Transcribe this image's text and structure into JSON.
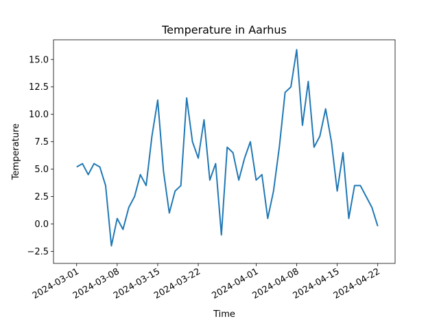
{
  "chart_data": {
    "type": "line",
    "title": "Temperature in Aarhus",
    "xlabel": "Time",
    "ylabel": "Temperature",
    "x": [
      "2024-03-01",
      "2024-03-02",
      "2024-03-03",
      "2024-03-04",
      "2024-03-05",
      "2024-03-06",
      "2024-03-07",
      "2024-03-08",
      "2024-03-09",
      "2024-03-10",
      "2024-03-11",
      "2024-03-12",
      "2024-03-13",
      "2024-03-14",
      "2024-03-15",
      "2024-03-16",
      "2024-03-17",
      "2024-03-18",
      "2024-03-19",
      "2024-03-20",
      "2024-03-21",
      "2024-03-22",
      "2024-03-23",
      "2024-03-24",
      "2024-03-25",
      "2024-03-26",
      "2024-03-27",
      "2024-03-28",
      "2024-03-29",
      "2024-03-30",
      "2024-03-31",
      "2024-04-01",
      "2024-04-02",
      "2024-04-03",
      "2024-04-04",
      "2024-04-05",
      "2024-04-06",
      "2024-04-07",
      "2024-04-08",
      "2024-04-09",
      "2024-04-10",
      "2024-04-11",
      "2024-04-12",
      "2024-04-13",
      "2024-04-14",
      "2024-04-15",
      "2024-04-16",
      "2024-04-17",
      "2024-04-18",
      "2024-04-19",
      "2024-04-20",
      "2024-04-21",
      "2024-04-22"
    ],
    "values": [
      5.2,
      5.5,
      4.5,
      5.5,
      5.2,
      3.5,
      -2.0,
      0.5,
      -0.5,
      1.5,
      2.5,
      4.5,
      3.5,
      8.0,
      11.3,
      4.8,
      1.0,
      3.0,
      3.5,
      11.5,
      7.5,
      6.0,
      9.5,
      4.0,
      5.5,
      -1.0,
      7.0,
      6.5,
      4.0,
      6.0,
      7.5,
      4.0,
      4.5,
      0.5,
      3.0,
      7.0,
      12.0,
      12.5,
      15.9,
      9.0,
      13.0,
      7.0,
      8.0,
      10.5,
      7.5,
      3.0,
      6.5,
      0.5,
      3.5,
      3.5,
      2.5,
      1.5,
      -0.2
    ],
    "color": "#1f77b4",
    "xlim": [
      "2024-02-26",
      "2024-04-25"
    ],
    "xticks": [
      "2024-03-01",
      "2024-03-08",
      "2024-03-15",
      "2024-03-22",
      "2024-04-01",
      "2024-04-08",
      "2024-04-15",
      "2024-04-22"
    ],
    "ylim": [
      -3.6,
      16.8
    ],
    "yticks": [
      {
        "value": -2.5,
        "label": "−2.5"
      },
      {
        "value": 0,
        "label": "0.0"
      },
      2.5,
      {
        "value": 5,
        "label": "5.0"
      },
      7.5,
      {
        "value": 10,
        "label": "10.0"
      },
      12.5,
      {
        "value": 15,
        "label": "15.0"
      }
    ]
  }
}
